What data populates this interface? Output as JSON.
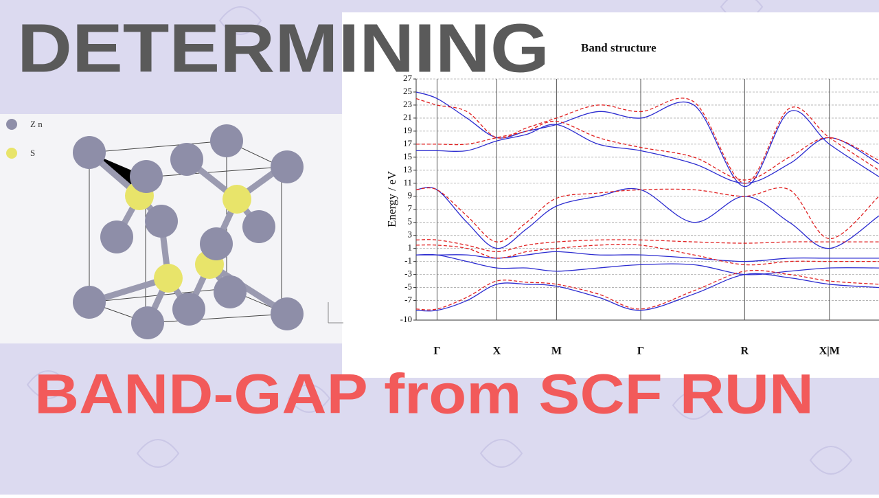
{
  "headline": "DETERMINING",
  "subheadline": "BAND-GAP from SCF RUN",
  "structure_legend": [
    "Z n",
    "S"
  ],
  "chart_data": {
    "type": "line",
    "title": "Band structure",
    "y_label": "Energy / eV",
    "x": [
      -0.35,
      0,
      0.5,
      1,
      1.5,
      2,
      2.7,
      3.41,
      4.3,
      5.15,
      5.9,
      6.57,
      7.4
    ],
    "xlim": [
      -0.35,
      7.4
    ],
    "xticks": [
      {
        "value": 0,
        "label": "Γ"
      },
      {
        "value": 1,
        "label": "X"
      },
      {
        "value": 2,
        "label": "M"
      },
      {
        "value": 3.41,
        "label": "Γ"
      },
      {
        "value": 5.15,
        "label": "R"
      },
      {
        "value": 6.57,
        "label": "X|M"
      }
    ],
    "ylim": [
      -10,
      27
    ],
    "yticks": [
      27,
      25,
      23,
      21,
      19,
      17,
      15,
      13,
      11,
      9,
      7,
      5,
      3,
      1,
      -1,
      -3,
      -5,
      -7,
      -10
    ],
    "grid": true,
    "series": [
      {
        "color": "#2b2bd0",
        "dashed": false,
        "values": [
          -8.5,
          -8.5,
          -7,
          -4.5,
          -4.5,
          -4.8,
          -6.5,
          -8.5,
          -6,
          -3,
          -3.5,
          -4.5,
          -5
        ]
      },
      {
        "color": "#2b2bd0",
        "dashed": false,
        "values": [
          0,
          0,
          -1,
          -2,
          -2,
          -2.5,
          -2,
          -1.5,
          -1.5,
          -3,
          -2.5,
          -2,
          -2
        ]
      },
      {
        "color": "#2b2bd0",
        "dashed": false,
        "values": [
          0,
          0,
          0,
          -0.5,
          0,
          0.5,
          0,
          0,
          -0.5,
          -1,
          -0.5,
          -0.5,
          -0.5
        ]
      },
      {
        "color": "#2b2bd0",
        "dashed": false,
        "values": [
          10,
          10,
          5,
          1,
          4,
          7.5,
          9,
          10,
          5,
          9,
          5,
          1,
          6
        ]
      },
      {
        "color": "#2b2bd0",
        "dashed": false,
        "values": [
          16,
          16,
          16,
          17.5,
          18.5,
          20,
          17,
          16,
          14,
          11,
          14,
          18,
          14
        ]
      },
      {
        "color": "#2b2bd0",
        "dashed": false,
        "values": [
          25,
          24,
          21,
          18,
          19,
          20,
          22,
          21,
          23,
          10.5,
          22,
          17,
          12
        ]
      },
      {
        "color": "#e02020",
        "dashed": true,
        "values": [
          -8.3,
          -8.3,
          -6.5,
          -4,
          -4.2,
          -4.5,
          -6,
          -8.3,
          -5.5,
          -2.5,
          -3,
          -4,
          -4.5
        ]
      },
      {
        "color": "#e02020",
        "dashed": true,
        "values": [
          2.3,
          2.3,
          1.5,
          0.5,
          1.5,
          2,
          2.3,
          2.3,
          2,
          1.8,
          2,
          2,
          2
        ]
      },
      {
        "color": "#e02020",
        "dashed": true,
        "values": [
          1.5,
          1.5,
          1,
          -0.5,
          0.5,
          1,
          1.5,
          1.5,
          0,
          -1.5,
          -1,
          -1,
          -1
        ]
      },
      {
        "color": "#e02020",
        "dashed": true,
        "values": [
          10,
          10,
          6,
          2,
          5,
          8.7,
          9.5,
          10,
          10,
          9,
          10,
          2.5,
          9
        ]
      },
      {
        "color": "#e02020",
        "dashed": true,
        "values": [
          17,
          17,
          17,
          18,
          19,
          20.5,
          18,
          16.5,
          15,
          11.5,
          15,
          18,
          14.5
        ]
      },
      {
        "color": "#e02020",
        "dashed": true,
        "values": [
          24,
          23,
          22,
          18,
          19.5,
          21,
          23,
          22,
          23.5,
          11,
          22.5,
          18,
          13
        ]
      }
    ]
  }
}
